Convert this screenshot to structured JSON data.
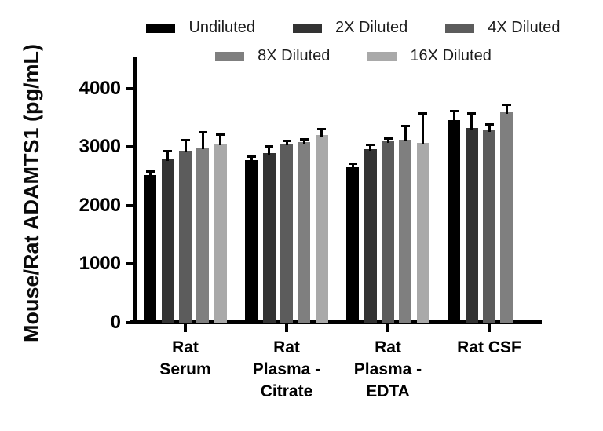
{
  "chart_data": {
    "type": "bar",
    "title": "",
    "xlabel": "",
    "ylabel": "Mouse/Rat ADAMTS1 (pg/mL)",
    "ylim": [
      0,
      4500
    ],
    "yticks": [
      0,
      1000,
      2000,
      3000,
      4000
    ],
    "grid": false,
    "legend_position": "top",
    "error_bars": "upper",
    "categories": [
      "Rat Serum",
      "Rat Plasma - Citrate",
      "Rat Plasma - EDTA",
      "Rat CSF"
    ],
    "category_label_lines": [
      [
        "Rat",
        "Serum"
      ],
      [
        "Rat",
        "Plasma -",
        "Citrate"
      ],
      [
        "Rat",
        "Plasma -",
        "EDTA"
      ],
      [
        "Rat CSF"
      ]
    ],
    "series": [
      {
        "name": "Undiluted",
        "color": "#000000",
        "values": [
          2520,
          2770,
          2650,
          3460
        ],
        "errors": [
          55,
          65,
          55,
          145
        ]
      },
      {
        "name": "2X Diluted",
        "color": "#333333",
        "values": [
          2790,
          2900,
          2960,
          3320
        ],
        "errors": [
          130,
          100,
          75,
          250
        ]
      },
      {
        "name": "4X Diluted",
        "color": "#5c5c5c",
        "values": [
          2940,
          3060,
          3100,
          3290
        ],
        "errors": [
          165,
          35,
          35,
          90
        ]
      },
      {
        "name": "8X Diluted",
        "color": "#7f7f7f",
        "values": [
          2990,
          3080,
          3130,
          3590
        ],
        "errors": [
          260,
          45,
          220,
          125
        ]
      },
      {
        "name": "16X Diluted",
        "color": "#a9a9a9",
        "values": [
          3060,
          3200,
          3070,
          null
        ],
        "errors": [
          145,
          100,
          490,
          null
        ]
      }
    ],
    "legend_rows": [
      [
        0,
        1,
        2
      ],
      [
        3,
        4
      ]
    ],
    "axis_color": "#000000"
  }
}
